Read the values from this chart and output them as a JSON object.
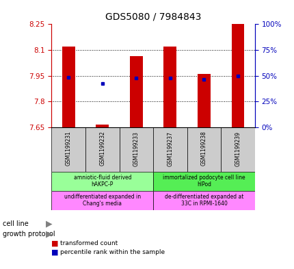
{
  "title": "GDS5080 / 7984843",
  "samples": [
    "GSM1199231",
    "GSM1199232",
    "GSM1199233",
    "GSM1199237",
    "GSM1199238",
    "GSM1199239"
  ],
  "ymin": 7.65,
  "ymax": 8.25,
  "y_left_ticks": [
    7.65,
    7.8,
    7.95,
    8.1,
    8.25
  ],
  "y_right_ticks": [
    0,
    25,
    50,
    75,
    100
  ],
  "bar_bottoms": [
    7.65,
    7.65,
    7.65,
    7.65,
    7.65,
    7.65
  ],
  "bar_tops": [
    8.12,
    7.666,
    8.065,
    8.12,
    7.96,
    8.25
  ],
  "blue_y": [
    7.942,
    7.906,
    7.936,
    7.936,
    7.929,
    7.95
  ],
  "bar_color": "#cc0000",
  "blue_color": "#0000bb",
  "cell_line_labels": [
    "amniotic-fluid derived\nhAKPC-P",
    "immortalized podocyte cell line\nhIPod"
  ],
  "cell_line_colors": [
    "#99ff99",
    "#55ee55"
  ],
  "growth_protocol_labels": [
    "undifferentiated expanded in\nChang's media",
    "de-differentiated expanded at\n33C in RPMI-1640"
  ],
  "growth_protocol_colors": [
    "#ff88ff",
    "#ff88ff"
  ],
  "cell_line_spans": [
    [
      0,
      3
    ],
    [
      3,
      6
    ]
  ],
  "legend_red_label": "transformed count",
  "legend_blue_label": "percentile rank within the sample",
  "title_color": "#000000",
  "left_axis_color": "#cc0000",
  "right_axis_color": "#0000bb",
  "sample_bg": "#cccccc",
  "bar_width": 0.38
}
